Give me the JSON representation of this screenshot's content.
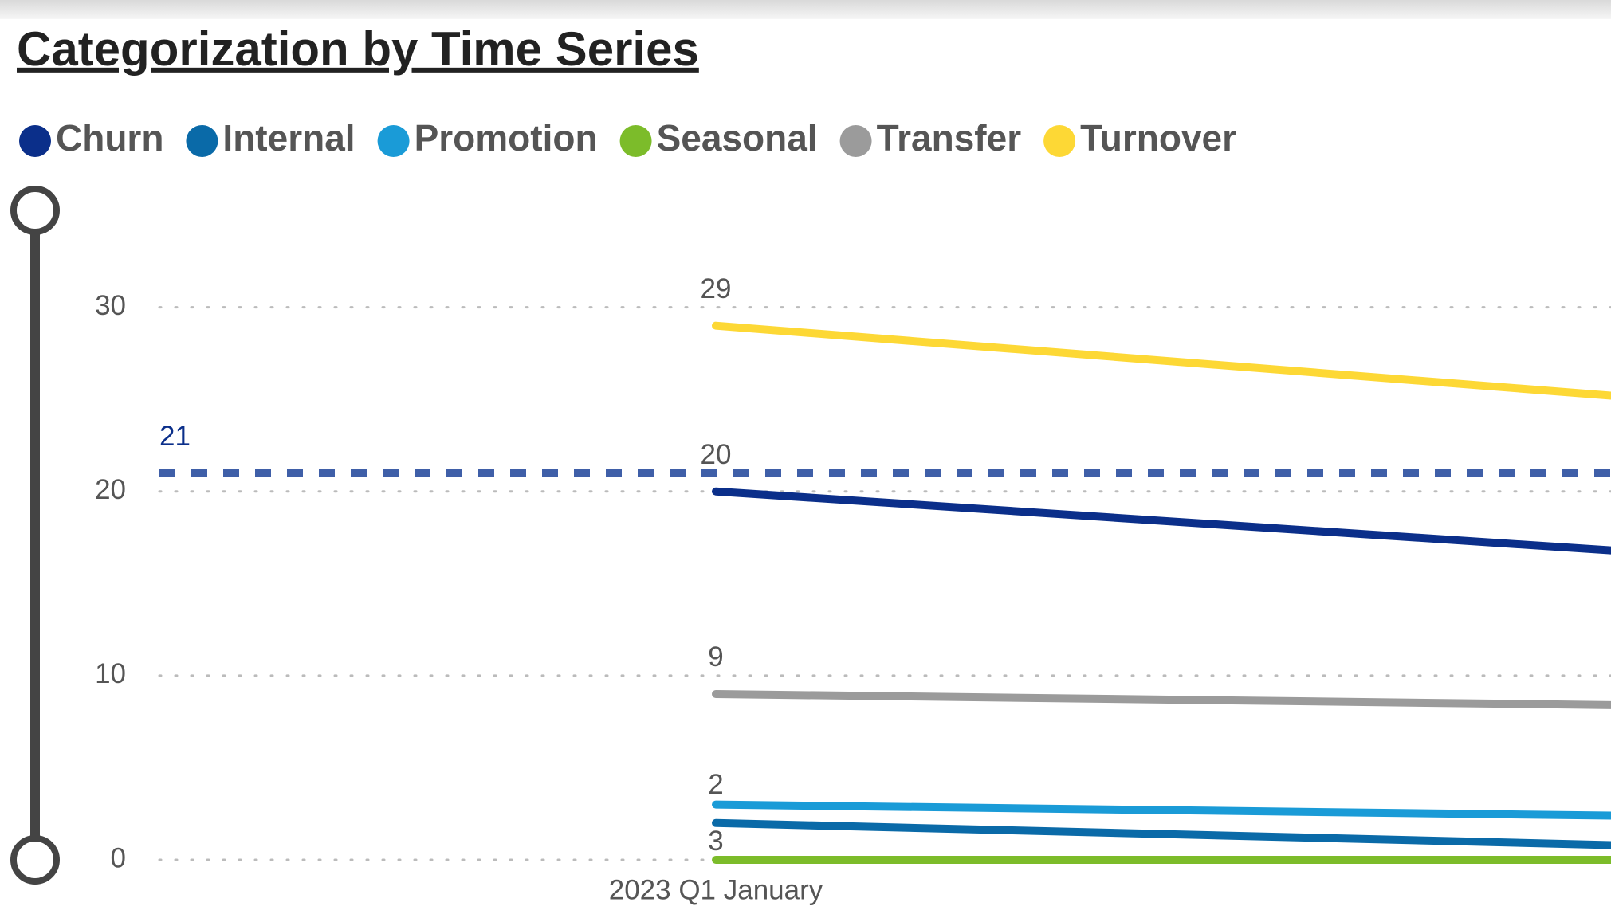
{
  "chart_data": {
    "type": "line",
    "title": "Categorization by Time Series",
    "categories": [
      "2023 Q1 January",
      null
    ],
    "series": [
      {
        "name": "Churn",
        "color": "#0b2f8a",
        "values": [
          20,
          16.8
        ]
      },
      {
        "name": "Internal",
        "color": "#0a6aa8",
        "values": [
          2,
          0.8
        ]
      },
      {
        "name": "Promotion",
        "color": "#1a9bd7",
        "values": [
          3,
          2.4
        ]
      },
      {
        "name": "Seasonal",
        "color": "#7cbc2a",
        "values": [
          0,
          0
        ]
      },
      {
        "name": "Transfer",
        "color": "#9b9b9b",
        "values": [
          9,
          8.4
        ]
      },
      {
        "name": "Turnover",
        "color": "#fdd835",
        "values": [
          29,
          25.2
        ]
      }
    ],
    "reference_line": {
      "value": 21,
      "color": "#3f5fa8",
      "label_color": "#0b2f8a"
    },
    "ylim": [
      0,
      35
    ],
    "yticks": [
      0,
      10,
      20,
      30
    ],
    "grid": true
  }
}
